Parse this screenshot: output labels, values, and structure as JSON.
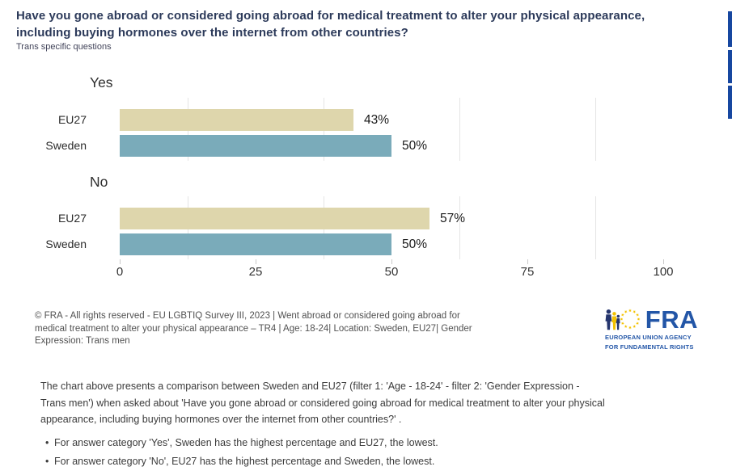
{
  "header": {
    "title": "Have you gone abroad or considered going abroad for medical treatment to alter your physical appearance, including buying hormones over the internet from other countries?",
    "subtitle": "Trans specific questions"
  },
  "edge_toolbar": {
    "button_color": "#1747a0"
  },
  "chart_data": {
    "type": "bar",
    "orientation": "horizontal",
    "title": "Have you gone abroad or considered going abroad for medical treatment to alter your physical appearance, including buying hormones over the internet from other countries?",
    "categories": [
      "Yes",
      "No"
    ],
    "series": [
      {
        "name": "EU27",
        "values": [
          43,
          57
        ]
      },
      {
        "name": "Sweden",
        "values": [
          50,
          50
        ]
      }
    ],
    "groups": [
      {
        "label": "Yes",
        "bars": [
          {
            "category": "EU27",
            "value": 43,
            "display": "43%"
          },
          {
            "category": "Sweden",
            "value": 50,
            "display": "50%"
          }
        ]
      },
      {
        "label": "No",
        "bars": [
          {
            "category": "EU27",
            "value": 57,
            "display": "57%"
          },
          {
            "category": "Sweden",
            "value": 50,
            "display": "50%"
          }
        ]
      }
    ],
    "x_axis": {
      "min": 0,
      "max": 100,
      "ticks": [
        0,
        25,
        50,
        75,
        100
      ]
    },
    "colors": {
      "EU27": "#ded6ac",
      "Sweden": "#7aabba"
    },
    "grid": {
      "minor_vertical_percent": [
        12.5,
        37.5,
        62.5,
        87.5
      ]
    },
    "legend": "none",
    "value_suffix": "%"
  },
  "attribution": {
    "lines": [
      "© FRA - All rights reserved - EU LGBTIQ Survey III, 2023 | Went abroad or considered going abroad for",
      "medical treatment to alter your physical appearance – TR4 | Age: 18-24| Location: Sweden, EU27| Gender",
      "Expression: Trans men"
    ]
  },
  "logo": {
    "acronym": "FRA",
    "caption_line1": "EUROPEAN UNION AGENCY",
    "caption_line2": "FOR FUNDAMENTAL RIGHTS",
    "blue": "#2356a7",
    "yellow": "#f3c200"
  },
  "description": {
    "lines": [
      "The chart above presents a comparison between Sweden and EU27 (filter 1: 'Age - 18-24' - filter 2: 'Gender Expression -",
      "Trans men') when asked about 'Have you gone abroad or considered going abroad for medical treatment to alter your physical",
      "appearance, including buying hormones over the internet from other countries?' ."
    ],
    "bullets": [
      "For answer category 'Yes', Sweden has the highest percentage and EU27, the lowest.",
      "For answer category 'No', EU27 has the highest percentage and Sweden, the lowest."
    ]
  }
}
